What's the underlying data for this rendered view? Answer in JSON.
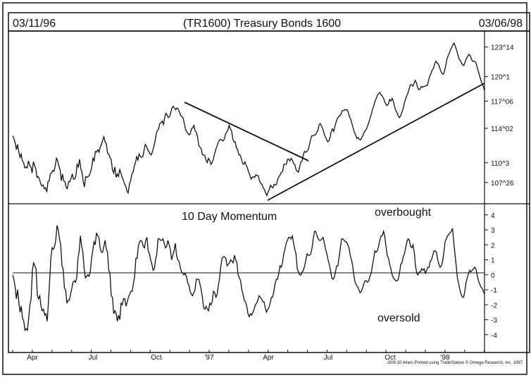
{
  "header": {
    "date_start": "03/11/96",
    "title": "(TR1600) Treasury Bonds 1600",
    "date_end": "03/06/98"
  },
  "annotations": {
    "momentum_label": "10 Day Momentum",
    "overbought": "overbought",
    "oversold": "oversold"
  },
  "footer": {
    "credit": "3/08 10:44am Printed using TradeStation © Omega Research, Inc. 1997"
  },
  "colors": {
    "line": "#111111",
    "background": "#ffffff"
  },
  "chart_data": [
    {
      "type": "line",
      "title": "(TR1600) Treasury Bonds 1600",
      "x_labels": [
        "Apr",
        "Jul",
        "Oct",
        "'97",
        "Apr",
        "Jul",
        "Oct",
        "'98"
      ],
      "y_tick_labels": [
        "123^14",
        "120^1",
        "117^06",
        "114^02",
        "110^3",
        "107^26"
      ],
      "y_tick_values": [
        123.44,
        120.03,
        117.19,
        114.06,
        110.09,
        107.81
      ],
      "ylim": [
        105.6,
        124.8
      ],
      "series": [
        {
          "values": [
            113.2,
            112.9,
            112.4,
            111.6,
            112.2,
            111.4,
            110.7,
            111.1,
            110.3,
            110.1,
            109.5,
            109.6,
            109.5,
            110.3,
            109.8,
            109.6,
            108.9,
            110.2,
            109.8,
            109.4,
            108.4,
            108.5,
            108.2,
            107.7,
            107.4,
            107.5,
            107.1,
            107.2,
            106.7,
            107.9,
            108.0,
            108.8,
            108.9,
            109.2,
            109.1,
            109.7,
            110.6,
            110.3,
            109.7,
            109.3,
            108.0,
            108.8,
            108.0,
            107.9,
            107.2,
            107.1,
            107.9,
            107.9,
            108.3,
            108.8,
            108.2,
            108.2,
            108.6,
            109.9,
            109.6,
            110.5,
            109.4,
            109.0,
            107.9,
            107.3,
            108.5,
            108.4,
            108.5,
            108.6,
            109.0,
            109.5,
            110.6,
            110.3,
            111.4,
            111.3,
            111.6,
            111.3,
            111.9,
            112.2,
            112.7,
            113.1,
            112.5,
            112.3,
            111.2,
            111.1,
            110.7,
            110.5,
            109.3,
            108.9,
            109.6,
            108.4,
            108.8,
            108.5,
            109.3,
            108.9,
            108.4,
            108.1,
            107.6,
            107.4,
            106.8,
            106.6,
            107.6,
            108.0,
            108.8,
            109.0,
            109.7,
            110.1,
            110.8,
            110.4,
            111.1,
            110.8,
            110.7,
            110.8,
            111.5,
            112.2,
            112.0,
            111.6,
            111.4,
            111.1,
            111.0,
            111.4,
            111.9,
            112.5,
            113.4,
            113.8,
            114.0,
            114.6,
            114.7,
            114.9,
            114.5,
            115.3,
            115.8,
            115.6,
            115.3,
            115.4,
            115.9,
            116.4,
            116.6,
            116.4,
            116.2,
            116.4,
            116.3,
            116.0,
            115.6,
            115.4,
            115.3,
            114.7,
            114.0,
            113.7,
            113.5,
            113.3,
            113.4,
            114.0,
            114.1,
            114.4,
            113.8,
            113.6,
            113.1,
            112.1,
            111.9,
            111.7,
            111.0,
            111.0,
            110.9,
            110.4,
            110.1,
            110.6,
            110.4,
            109.9,
            110.1,
            110.5,
            111.1,
            111.6,
            112.0,
            112.4,
            112.7,
            112.8,
            112.7,
            112.6,
            112.8,
            113.4,
            113.6,
            113.9,
            114.4,
            114.0,
            113.8,
            112.8,
            112.5,
            112.5,
            111.8,
            111.6,
            111.0,
            111.0,
            110.6,
            110.0,
            109.9,
            110.2,
            109.8,
            109.5,
            109.0,
            108.7,
            108.2,
            108.4,
            108.5,
            108.4,
            108.7,
            108.6,
            108.6,
            108.0,
            107.7,
            107.6,
            107.2,
            107.0,
            106.6,
            106.3,
            106.7,
            107.0,
            107.5,
            107.3,
            107.2,
            107.6,
            107.5,
            107.6,
            108.2,
            108.5,
            108.7,
            109.0,
            109.1,
            109.9,
            109.9,
            109.9,
            110.5,
            110.5,
            110.3,
            110.6,
            110.4,
            110.0,
            109.9,
            109.3,
            109.1,
            109.0,
            109.6,
            110.2,
            110.3,
            111.0,
            111.4,
            111.3,
            111.4,
            111.6,
            112.1,
            112.8,
            113.2,
            113.2,
            113.3,
            113.3,
            113.6,
            113.8,
            114.5,
            114.6,
            114.3,
            114.0,
            113.5,
            113.1,
            112.8,
            112.5,
            112.6,
            113.0,
            113.7,
            114.0,
            113.7,
            114.3,
            114.8,
            115.2,
            115.4,
            115.5,
            115.7,
            116.1,
            116.1,
            116.2,
            116.2,
            116.2,
            115.9,
            115.4,
            115.1,
            114.6,
            114.1,
            113.6,
            113.3,
            112.9,
            113.0,
            112.8,
            112.7,
            113.0,
            113.2,
            113.6,
            113.8,
            114.0,
            114.4,
            114.8,
            115.3,
            115.7,
            116.3,
            116.7,
            117.2,
            117.5,
            117.9,
            118.1,
            118.2,
            117.9,
            117.8,
            117.5,
            117.1,
            116.8,
            116.7,
            116.9,
            117.4,
            117.2,
            117.5,
            117.2,
            116.6,
            116.1,
            115.9,
            115.5,
            115.3,
            115.5,
            115.9,
            116.3,
            116.9,
            117.4,
            117.8,
            118.1,
            118.6,
            119.1,
            119.1,
            118.9,
            119.2,
            119.6,
            119.3,
            118.8,
            118.5,
            118.6,
            118.9,
            118.8,
            118.9,
            118.9,
            119.0,
            119.0,
            119.6,
            120.1,
            120.4,
            120.8,
            121.0,
            121.5,
            121.8,
            121.6,
            121.5,
            121.1,
            120.7,
            120.4,
            120.3,
            120.6,
            121.2,
            122.0,
            122.4,
            122.7,
            123.1,
            123.4,
            123.7,
            123.9,
            123.5,
            123.1,
            122.6,
            122.1,
            121.9,
            121.6,
            121.4,
            121.3,
            121.7,
            122.1,
            122.3,
            122.6,
            122.5,
            122.2,
            121.8,
            121.8,
            121.8,
            121.6,
            121.1,
            120.6,
            120.1,
            119.6,
            119.2,
            118.9,
            118.4
          ]
        }
      ]
    },
    {
      "type": "line",
      "title": "10 Day Momentum",
      "x_labels": [
        "Apr",
        "Jul",
        "Oct",
        "'97",
        "Apr",
        "Jul",
        "Oct",
        "'98"
      ],
      "y_tick_labels": [
        "4",
        "3",
        "2",
        "1",
        "0",
        "-1",
        "-2",
        "-3",
        "-4"
      ],
      "y_tick_values": [
        4,
        3,
        2,
        1,
        0,
        -1,
        -2,
        -3,
        -4
      ],
      "ylim": [
        -5,
        4.6
      ],
      "series": [
        {
          "values": [
            0.0,
            -0.3,
            -0.8,
            -1.6,
            -1.0,
            -1.8,
            -2.5,
            -2.1,
            -2.9,
            -3.1,
            -3.7,
            -3.6,
            -3.7,
            -2.9,
            -2.0,
            -1.6,
            0.3,
            0.8,
            0.6,
            0.4,
            -1.4,
            -1.6,
            -1.4,
            -2.1,
            -2.4,
            -2.3,
            -2.7,
            -2.6,
            -3.1,
            -1.9,
            -0.4,
            1.1,
            1.8,
            1.7,
            1.9,
            2.3,
            3.3,
            3.0,
            2.4,
            2.0,
            0.6,
            0.4,
            -0.9,
            -1.0,
            -1.9,
            -1.7,
            -1.7,
            -1.3,
            -0.9,
            -0.5,
            -0.4,
            -0.5,
            -0.2,
            1.1,
            1.6,
            2.6,
            1.9,
            1.5,
            0.4,
            -0.2,
            -0.1,
            0.0,
            -0.1,
            0.2,
            1.1,
            1.6,
            2.2,
            2.0,
            2.8,
            2.6,
            2.5,
            1.8,
            1.5,
            1.5,
            1.9,
            2.3,
            1.7,
            1.5,
            0.3,
            0.1,
            -1.4,
            -1.5,
            -2.6,
            -2.4,
            -2.6,
            -3.1,
            -2.7,
            -3.0,
            -1.9,
            -2.0,
            -1.6,
            -1.6,
            -2.1,
            -1.8,
            -1.5,
            -1.3,
            -1.1,
            -1.1,
            -0.6,
            -0.1,
            1.1,
            1.1,
            1.9,
            2.2,
            2.3,
            2.2,
            1.9,
            1.8,
            2.3,
            2.5,
            1.6,
            1.4,
            1.0,
            0.7,
            0.3,
            0.4,
            1.0,
            1.4,
            2.4,
            2.4,
            2.3,
            2.3,
            2.4,
            2.1,
            1.8,
            1.9,
            2.3,
            2.0,
            1.7,
            1.0,
            1.3,
            1.6,
            2.1,
            1.3,
            1.0,
            0.9,
            0.5,
            0.2,
            0.1,
            0.0,
            0.1,
            -0.1,
            -0.5,
            -0.7,
            -1.1,
            -1.3,
            -1.4,
            -1.2,
            -1.0,
            -0.3,
            -0.3,
            -0.3,
            -0.6,
            -1.0,
            -1.5,
            -2.2,
            -2.3,
            -2.1,
            -2.3,
            -2.4,
            -1.9,
            -2.0,
            -1.8,
            -1.1,
            -1.2,
            -1.5,
            -1.3,
            -0.7,
            -0.2,
            0.6,
            1.1,
            1.2,
            1.2,
            1.1,
            0.6,
            0.7,
            0.8,
            1.0,
            0.9,
            0.8,
            1.3,
            1.0,
            0.8,
            0.0,
            -0.2,
            -0.4,
            -1.0,
            -1.3,
            -1.7,
            -1.8,
            -2.1,
            -2.6,
            -2.8,
            -2.6,
            -2.7,
            -2.5,
            -2.3,
            -2.0,
            -1.9,
            -1.7,
            -1.4,
            -1.5,
            -1.6,
            -1.8,
            -1.8,
            -2.2,
            -2.5,
            -2.3,
            -2.2,
            -1.9,
            -1.5,
            -1.5,
            -1.1,
            -0.6,
            -0.3,
            -0.3,
            0.1,
            0.6,
            0.5,
            0.8,
            1.4,
            1.7,
            2.1,
            2.3,
            2.5,
            2.5,
            2.4,
            2.6,
            2.1,
            1.7,
            1.4,
            0.4,
            0.2,
            0.0,
            0.0,
            0.2,
            0.3,
            0.6,
            1.0,
            1.4,
            1.3,
            1.3,
            1.4,
            1.8,
            2.4,
            2.9,
            2.9,
            2.6,
            2.4,
            2.3,
            2.3,
            2.4,
            2.5,
            2.1,
            1.7,
            1.4,
            1.0,
            0.7,
            0.3,
            -0.2,
            -0.3,
            -0.2,
            0.2,
            0.6,
            0.6,
            1.2,
            1.8,
            2.4,
            2.4,
            2.3,
            2.2,
            2.2,
            2.0,
            1.8,
            1.3,
            1.0,
            0.6,
            -0.1,
            -0.5,
            -0.7,
            -0.8,
            -1.0,
            -1.2,
            -1.1,
            -0.9,
            -0.6,
            -0.4,
            -0.4,
            -0.5,
            -0.4,
            -0.1,
            0.1,
            0.6,
            1.1,
            1.6,
            1.5,
            1.6,
            1.9,
            2.3,
            2.6,
            2.6,
            2.9,
            2.6,
            1.9,
            1.3,
            1.1,
            0.7,
            0.4,
            0.0,
            -0.2,
            -0.3,
            -0.4,
            -0.4,
            -0.3,
            0.1,
            0.7,
            0.8,
            1.2,
            1.4,
            1.8,
            2.2,
            2.4,
            2.3,
            1.9,
            1.8,
            2.0,
            1.5,
            0.6,
            0.1,
            0.0,
            0.2,
            0.2,
            0.4,
            0.3,
            0.4,
            0.1,
            0.3,
            0.5,
            0.5,
            0.9,
            1.0,
            1.3,
            1.6,
            1.6,
            1.5,
            1.0,
            0.7,
            0.5,
            0.6,
            0.9,
            1.5,
            2.2,
            2.4,
            2.6,
            2.7,
            2.8,
            2.9,
            3.1,
            2.2,
            1.4,
            0.6,
            -0.2,
            -0.6,
            -1.0,
            -1.3,
            -1.5,
            -1.5,
            -1.1,
            -0.5,
            -0.2,
            0.1,
            0.3,
            0.2,
            0.3,
            0.4,
            0.5,
            0.4,
            0.0,
            -0.4,
            -0.6,
            -0.8,
            -0.9,
            -1.1,
            -1.3
          ]
        }
      ]
    }
  ]
}
